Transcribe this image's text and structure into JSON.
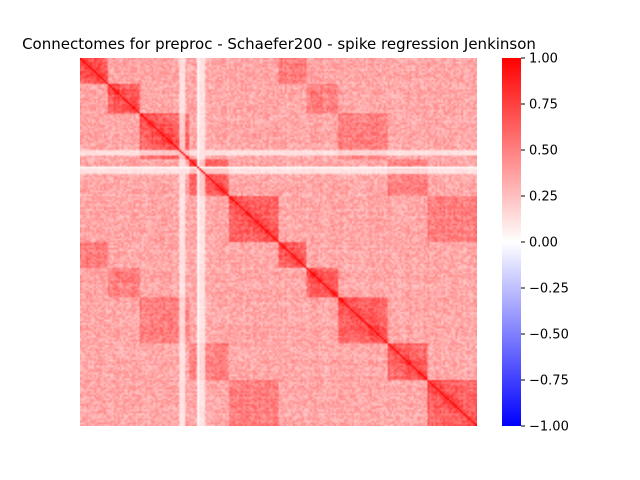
{
  "chart_data": {
    "type": "heatmap",
    "title": "Connectomes for preproc - Schaefer200 - spike regression Jenkinson",
    "xlabel": "",
    "ylabel": "",
    "n_regions": 200,
    "diagonal_value": 1.0,
    "colormap": "bwr",
    "colors": {
      "low": "#0000ff",
      "mid": "#ffffff",
      "high": "#ff0000"
    },
    "colorbar": {
      "vmin": -1.0,
      "vmax": 1.0,
      "ticks": [
        1.0,
        0.75,
        0.5,
        0.25,
        0.0,
        -0.25,
        -0.5,
        -0.75,
        -1.0
      ],
      "tick_labels": [
        "1.00",
        "0.75",
        "0.50",
        "0.25",
        "0.00",
        "−0.25",
        "−0.50",
        "−0.75",
        "−1.00"
      ]
    },
    "grid": false,
    "legend": "colorbar-right"
  }
}
